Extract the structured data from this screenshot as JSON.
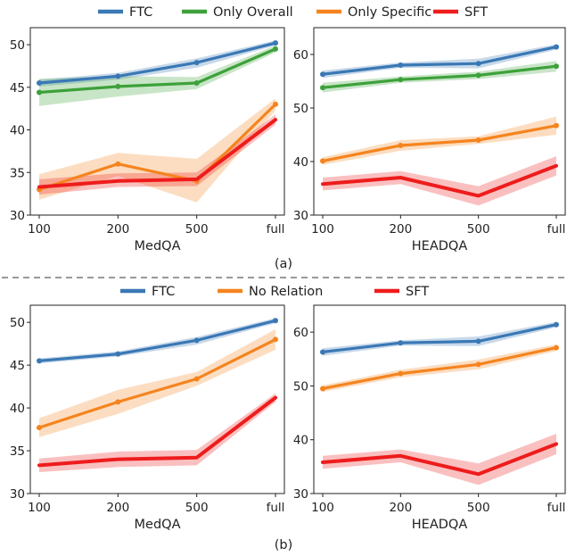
{
  "figure": {
    "caption_a": "(a)",
    "caption_b": "(b)"
  },
  "legend_a": [
    {
      "name": "FTC",
      "color": "#3a78b5"
    },
    {
      "name": "Only Overall",
      "color": "#3da13a"
    },
    {
      "name": "Only Specific",
      "color": "#f5841f"
    },
    {
      "name": "SFT",
      "color": "#ee1c1c"
    }
  ],
  "legend_b": [
    {
      "name": "FTC",
      "color": "#3a78b5"
    },
    {
      "name": "No Relation",
      "color": "#f5841f"
    },
    {
      "name": "SFT",
      "color": "#ee1c1c"
    }
  ],
  "chart_data": [
    {
      "id": "a-medqa",
      "type": "line",
      "xlabel": "MedQA",
      "categories": [
        "100",
        "200",
        "500",
        "full"
      ],
      "ylim": [
        30,
        52
      ],
      "yticks": [
        30,
        35,
        40,
        45,
        50
      ],
      "series": [
        {
          "name": "FTC",
          "color": "#3a78b5",
          "values": [
            45.5,
            46.3,
            47.9,
            50.2
          ],
          "lower": [
            45.1,
            45.9,
            47.3,
            49.9
          ],
          "upper": [
            45.9,
            46.7,
            48.4,
            50.5
          ]
        },
        {
          "name": "Only Overall",
          "color": "#3da13a",
          "values": [
            44.4,
            45.1,
            45.5,
            49.5
          ],
          "lower": [
            42.8,
            43.9,
            44.8,
            49.1
          ],
          "upper": [
            46.0,
            46.3,
            46.2,
            49.9
          ]
        },
        {
          "name": "Only Specific",
          "color": "#f5841f",
          "values": [
            33.0,
            36.0,
            34.0,
            43.0
          ],
          "lower": [
            31.8,
            34.6,
            31.5,
            42.3
          ],
          "upper": [
            34.8,
            37.3,
            36.6,
            43.7
          ]
        },
        {
          "name": "SFT",
          "color": "#ee1c1c",
          "values": [
            33.3,
            34.0,
            34.2,
            41.2
          ],
          "lower": [
            32.4,
            33.3,
            33.4,
            40.6
          ],
          "upper": [
            34.2,
            34.9,
            35.0,
            41.8
          ]
        }
      ]
    },
    {
      "id": "a-headqa",
      "type": "line",
      "xlabel": "HEADQA",
      "categories": [
        "100",
        "200",
        "500",
        "full"
      ],
      "ylim": [
        30,
        65
      ],
      "yticks": [
        30,
        40,
        50,
        60
      ],
      "series": [
        {
          "name": "FTC",
          "color": "#3a78b5",
          "values": [
            56.3,
            58.0,
            58.3,
            61.4
          ],
          "lower": [
            55.6,
            57.5,
            57.4,
            60.9
          ],
          "upper": [
            57.0,
            58.5,
            59.2,
            61.9
          ]
        },
        {
          "name": "Only Overall",
          "color": "#3da13a",
          "values": [
            53.8,
            55.3,
            56.1,
            57.8
          ],
          "lower": [
            52.9,
            54.7,
            55.4,
            56.8
          ],
          "upper": [
            54.7,
            55.9,
            56.8,
            58.8
          ]
        },
        {
          "name": "Only Specific",
          "color": "#f5841f",
          "values": [
            40.1,
            43.0,
            44.0,
            46.7
          ],
          "lower": [
            39.4,
            42.0,
            43.3,
            45.0
          ],
          "upper": [
            40.8,
            44.0,
            44.7,
            48.4
          ]
        },
        {
          "name": "SFT",
          "color": "#ee1c1c",
          "values": [
            35.8,
            37.0,
            33.6,
            39.2
          ],
          "lower": [
            34.6,
            35.8,
            31.8,
            37.4
          ],
          "upper": [
            37.0,
            38.2,
            35.4,
            41.0
          ]
        }
      ]
    },
    {
      "id": "b-medqa",
      "type": "line",
      "xlabel": "MedQA",
      "categories": [
        "100",
        "200",
        "500",
        "full"
      ],
      "ylim": [
        30,
        52
      ],
      "yticks": [
        30,
        35,
        40,
        45,
        50
      ],
      "series": [
        {
          "name": "FTC",
          "color": "#3a78b5",
          "values": [
            45.5,
            46.3,
            47.9,
            50.2
          ],
          "lower": [
            45.2,
            46.0,
            47.4,
            49.9
          ],
          "upper": [
            45.8,
            46.6,
            48.3,
            50.5
          ]
        },
        {
          "name": "No Relation",
          "color": "#f5841f",
          "values": [
            37.7,
            40.7,
            43.4,
            48.0
          ],
          "lower": [
            36.6,
            39.3,
            42.6,
            46.8
          ],
          "upper": [
            38.8,
            42.1,
            44.2,
            49.2
          ]
        },
        {
          "name": "SFT",
          "color": "#ee1c1c",
          "values": [
            33.3,
            34.0,
            34.2,
            41.2
          ],
          "lower": [
            32.5,
            33.1,
            33.3,
            40.7
          ],
          "upper": [
            34.1,
            34.9,
            35.1,
            41.7
          ]
        }
      ]
    },
    {
      "id": "b-headqa",
      "type": "line",
      "xlabel": "HEADQA",
      "categories": [
        "100",
        "200",
        "500",
        "full"
      ],
      "ylim": [
        30,
        65
      ],
      "yticks": [
        30,
        40,
        50,
        60
      ],
      "series": [
        {
          "name": "FTC",
          "color": "#3a78b5",
          "values": [
            56.3,
            58.0,
            58.3,
            61.4
          ],
          "lower": [
            55.6,
            57.5,
            57.4,
            60.9
          ],
          "upper": [
            57.0,
            58.5,
            59.2,
            61.9
          ]
        },
        {
          "name": "No Relation",
          "color": "#f5841f",
          "values": [
            49.5,
            52.3,
            54.0,
            57.1
          ],
          "lower": [
            48.9,
            51.6,
            53.1,
            56.5
          ],
          "upper": [
            50.1,
            53.0,
            54.9,
            57.7
          ]
        },
        {
          "name": "SFT",
          "color": "#ee1c1c",
          "values": [
            35.8,
            37.0,
            33.6,
            39.2
          ],
          "lower": [
            34.6,
            35.8,
            31.6,
            37.3
          ],
          "upper": [
            37.0,
            38.2,
            35.6,
            41.1
          ]
        }
      ]
    }
  ]
}
